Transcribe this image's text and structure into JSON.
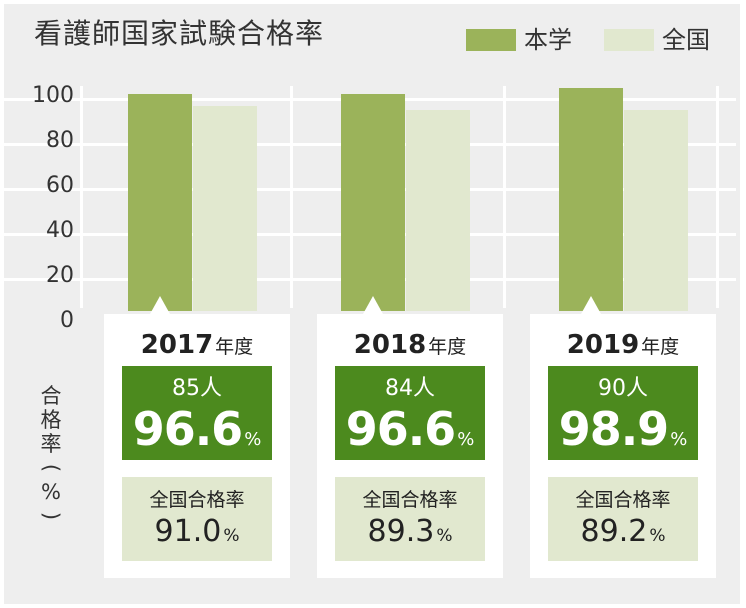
{
  "chart_data": {
    "type": "bar",
    "title": "看護師国家試験合格率",
    "categories": [
      "2017",
      "2018",
      "2019"
    ],
    "series": [
      {
        "name": "本学",
        "values": [
          96.6,
          96.6,
          98.9
        ],
        "color": "#9bb35a"
      },
      {
        "name": "全国",
        "values": [
          91.0,
          89.3,
          89.2
        ],
        "color": "#e1e8cf"
      }
    ],
    "ylabel_chars": [
      "合",
      "格",
      "率",
      "(",
      "%",
      ")"
    ],
    "ylim": [
      0,
      100
    ],
    "yticks": [
      "100",
      "80",
      "60",
      "40",
      "20",
      "0"
    ],
    "ytick_values": [
      100,
      80,
      60,
      40,
      20,
      0
    ],
    "grid": true,
    "legend": "top-right",
    "legend_items": [
      {
        "label": "本学",
        "color": "#9bb35a"
      },
      {
        "label": "全国",
        "color": "#e1e8cf"
      }
    ],
    "panels": [
      {
        "year": "2017",
        "year_suffix": "年度",
        "count": "85人",
        "rate": "96.6",
        "rate_unit": "%",
        "national_label": "全国合格率",
        "national_rate": "91.0",
        "national_unit": "%"
      },
      {
        "year": "2018",
        "year_suffix": "年度",
        "count": "84人",
        "rate": "96.6",
        "rate_unit": "%",
        "national_label": "全国合格率",
        "national_rate": "89.3",
        "national_unit": "%"
      },
      {
        "year": "2019",
        "year_suffix": "年度",
        "count": "90人",
        "rate": "98.9",
        "rate_unit": "%",
        "national_label": "全国合格率",
        "national_rate": "89.2",
        "national_unit": "%"
      }
    ]
  }
}
